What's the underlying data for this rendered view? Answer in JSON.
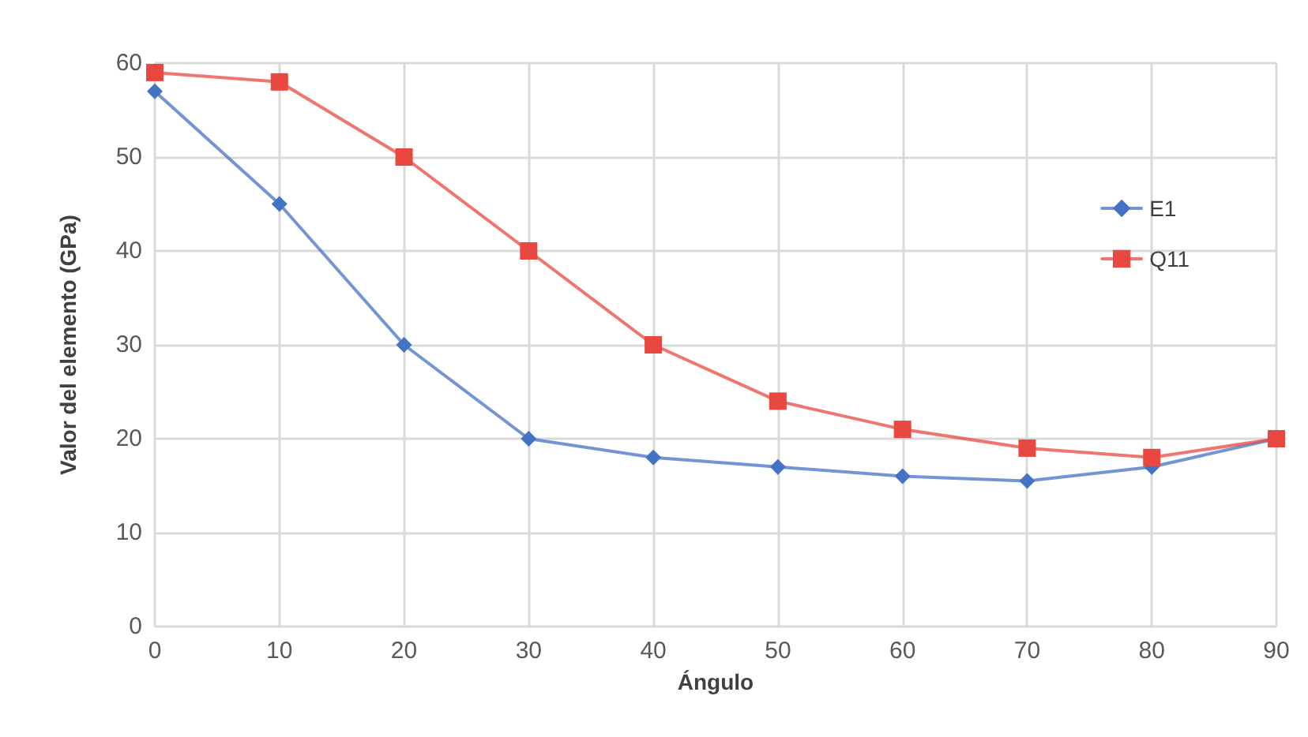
{
  "chart_data": {
    "type": "line",
    "xlabel": "Ángulo",
    "ylabel": "Valor del elemento (GPa)",
    "x": [
      0,
      10,
      20,
      30,
      40,
      50,
      60,
      70,
      80,
      90
    ],
    "series": [
      {
        "name": "E1",
        "color": "#4472c4",
        "marker": "diamond",
        "values": [
          57,
          45,
          30,
          20,
          18,
          17,
          16,
          15.5,
          17,
          20
        ]
      },
      {
        "name": "Q11",
        "color": "#e8483f",
        "marker": "square",
        "values": [
          59,
          58,
          50,
          40,
          30,
          24,
          21,
          19,
          18,
          20
        ]
      }
    ],
    "xlim": [
      0,
      90
    ],
    "xticks": [
      0,
      10,
      20,
      30,
      40,
      50,
      60,
      70,
      80,
      90
    ],
    "ylim": [
      0,
      60
    ],
    "yticks": [
      0,
      10,
      20,
      30,
      40,
      50,
      60
    ],
    "grid": true,
    "legend": "right",
    "line_style": "solid"
  }
}
